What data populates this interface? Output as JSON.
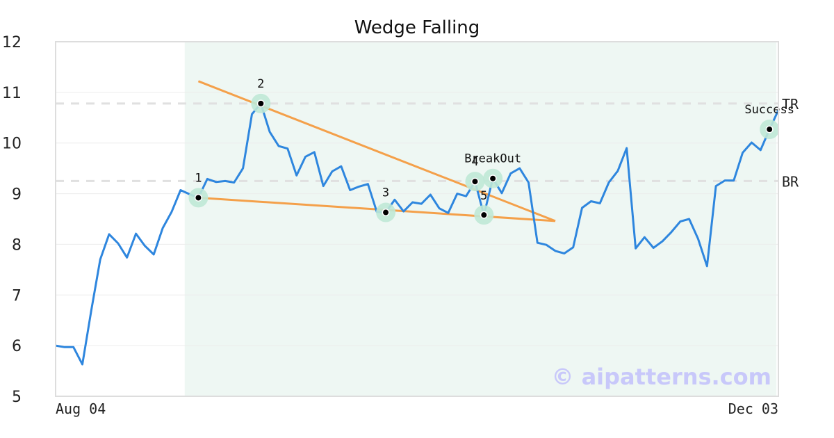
{
  "chart_data": {
    "type": "line",
    "title": "Wedge Falling",
    "x_tick_labels": [
      "Aug 04",
      "Dec 03"
    ],
    "ylim": [
      5,
      12
    ],
    "y_ticks": [
      5,
      6,
      7,
      8,
      9,
      10,
      11,
      12
    ],
    "grid": true,
    "series": [
      {
        "color": "#2e86de",
        "values": [
          6.0,
          5.97,
          5.97,
          5.63,
          6.7,
          7.7,
          8.2,
          8.02,
          7.74,
          8.21,
          7.97,
          7.8,
          8.32,
          8.64,
          9.07,
          8.99,
          8.92,
          9.29,
          9.23,
          9.25,
          9.22,
          9.5,
          10.57,
          10.78,
          10.22,
          9.94,
          9.89,
          9.36,
          9.73,
          9.82,
          9.15,
          9.44,
          9.54,
          9.07,
          9.14,
          9.19,
          8.64,
          8.63,
          8.88,
          8.65,
          8.83,
          8.8,
          8.98,
          8.71,
          8.62,
          9.0,
          8.95,
          9.24,
          8.58,
          9.3,
          9.01,
          9.4,
          9.5,
          9.22,
          8.03,
          7.99,
          7.87,
          7.82,
          7.94,
          8.72,
          8.85,
          8.81,
          9.22,
          9.45,
          9.9,
          7.92,
          8.14,
          7.93,
          8.06,
          8.24,
          8.45,
          8.5,
          8.11,
          7.57,
          9.15,
          9.26,
          9.26,
          9.81,
          10.01,
          9.86,
          10.27,
          10.65
        ]
      }
    ],
    "levels": [
      {
        "label": "TR",
        "value": 10.78,
        "color": "#e0e0e0"
      },
      {
        "label": "BR",
        "value": 9.25,
        "color": "#e0e0e0"
      }
    ],
    "highlight_range": {
      "from_index": 14,
      "to_index": 80,
      "color": "#eef7f3"
    },
    "pattern_lines": [
      {
        "color": "#f4a04a",
        "points": [
          [
            16,
            11.22
          ],
          [
            56,
            8.46
          ]
        ]
      },
      {
        "color": "#f4a04a",
        "points": [
          [
            16,
            8.92
          ],
          [
            56,
            8.46
          ]
        ]
      }
    ],
    "points": [
      {
        "label": "1",
        "index": 16,
        "value": 8.92
      },
      {
        "label": "2",
        "index": 23,
        "value": 10.78
      },
      {
        "label": "3",
        "index": 37,
        "value": 8.63
      },
      {
        "label": "4",
        "index": 47,
        "value": 9.24
      },
      {
        "label": "5",
        "index": 48,
        "value": 8.58
      },
      {
        "label": "BreakOut",
        "index": 49,
        "value": 9.3
      },
      {
        "label": "Success",
        "index": 80,
        "value": 10.27
      }
    ],
    "watermark": "© aipatterns.com"
  }
}
